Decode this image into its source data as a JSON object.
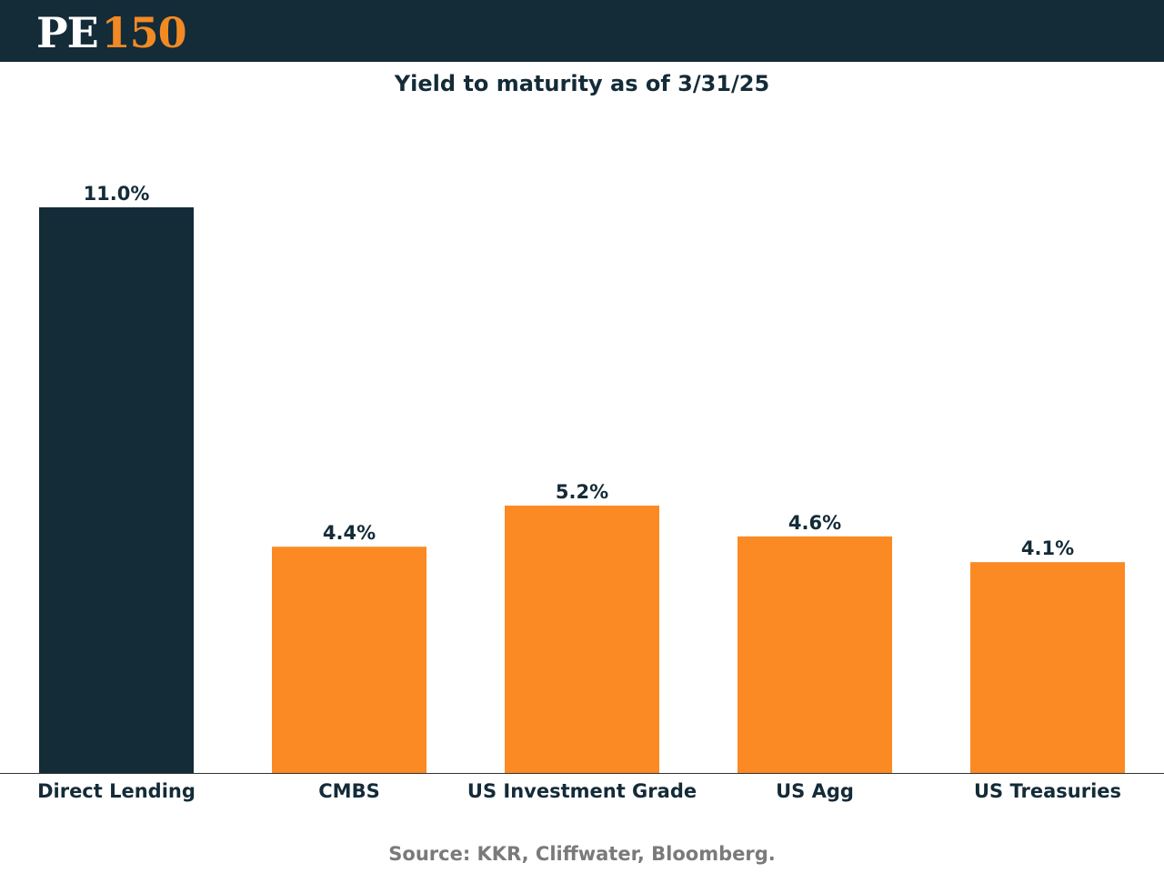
{
  "header": {
    "logo_prefix": "PE",
    "logo_number": "150"
  },
  "footer": {
    "source": "Source: KKR, Cliffwater, Bloomberg."
  },
  "chart_data": {
    "type": "bar",
    "title": "Yield to maturity as of 3/31/25",
    "categories": [
      "Direct Lending",
      "CMBS",
      "US Investment Grade",
      "US Agg",
      "US Treasuries"
    ],
    "values": [
      11.0,
      4.4,
      5.2,
      4.6,
      4.1
    ],
    "value_labels": [
      "11.0%",
      "4.4%",
      "5.2%",
      "4.6%",
      "4.1%"
    ],
    "bar_colors": [
      "#142b38",
      "#fb8a24",
      "#fb8a24",
      "#fb8a24",
      "#fb8a24"
    ],
    "xlabel": "",
    "ylabel": "",
    "ylim": [
      0,
      11.0
    ],
    "grid": false,
    "legend": "none"
  },
  "colors": {
    "header_bg": "#142b38",
    "accent": "#f28a24",
    "text_dark": "#142b38",
    "source_gray": "#7a7a7a"
  }
}
